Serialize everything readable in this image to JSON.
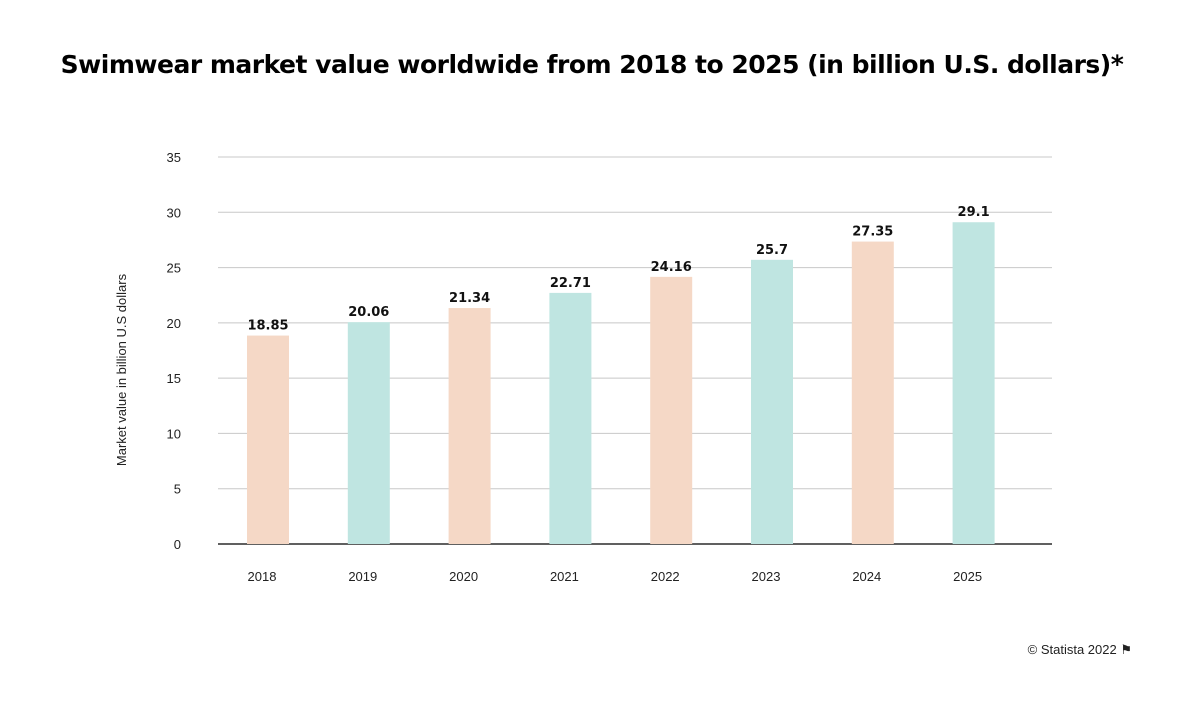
{
  "chart_data": {
    "type": "bar",
    "title": "Swimwear market value worldwide from 2018 to 2025 (in billion U.S. dollars)*",
    "xlabel": "",
    "ylabel": "Market value in billion U.S dollars",
    "ylim": [
      0,
      35
    ],
    "yticks": [
      0,
      5,
      10,
      15,
      20,
      25,
      30,
      35
    ],
    "grid": true,
    "categories": [
      "2018",
      "2019",
      "2020",
      "2021",
      "2022",
      "2023",
      "2024",
      "2025"
    ],
    "values": [
      18.85,
      20.06,
      21.34,
      22.71,
      24.16,
      25.7,
      27.35,
      29.1
    ],
    "data_labels": [
      "18.85",
      "20.06",
      "21.34",
      "22.71",
      "24.16",
      "25.7",
      "27.35",
      "29.1"
    ],
    "colors": [
      "#F5D8C6",
      "#BFE5E1"
    ]
  },
  "footer": {
    "copyright": "© Statista 2022",
    "flag_icon": "flag-icon"
  }
}
